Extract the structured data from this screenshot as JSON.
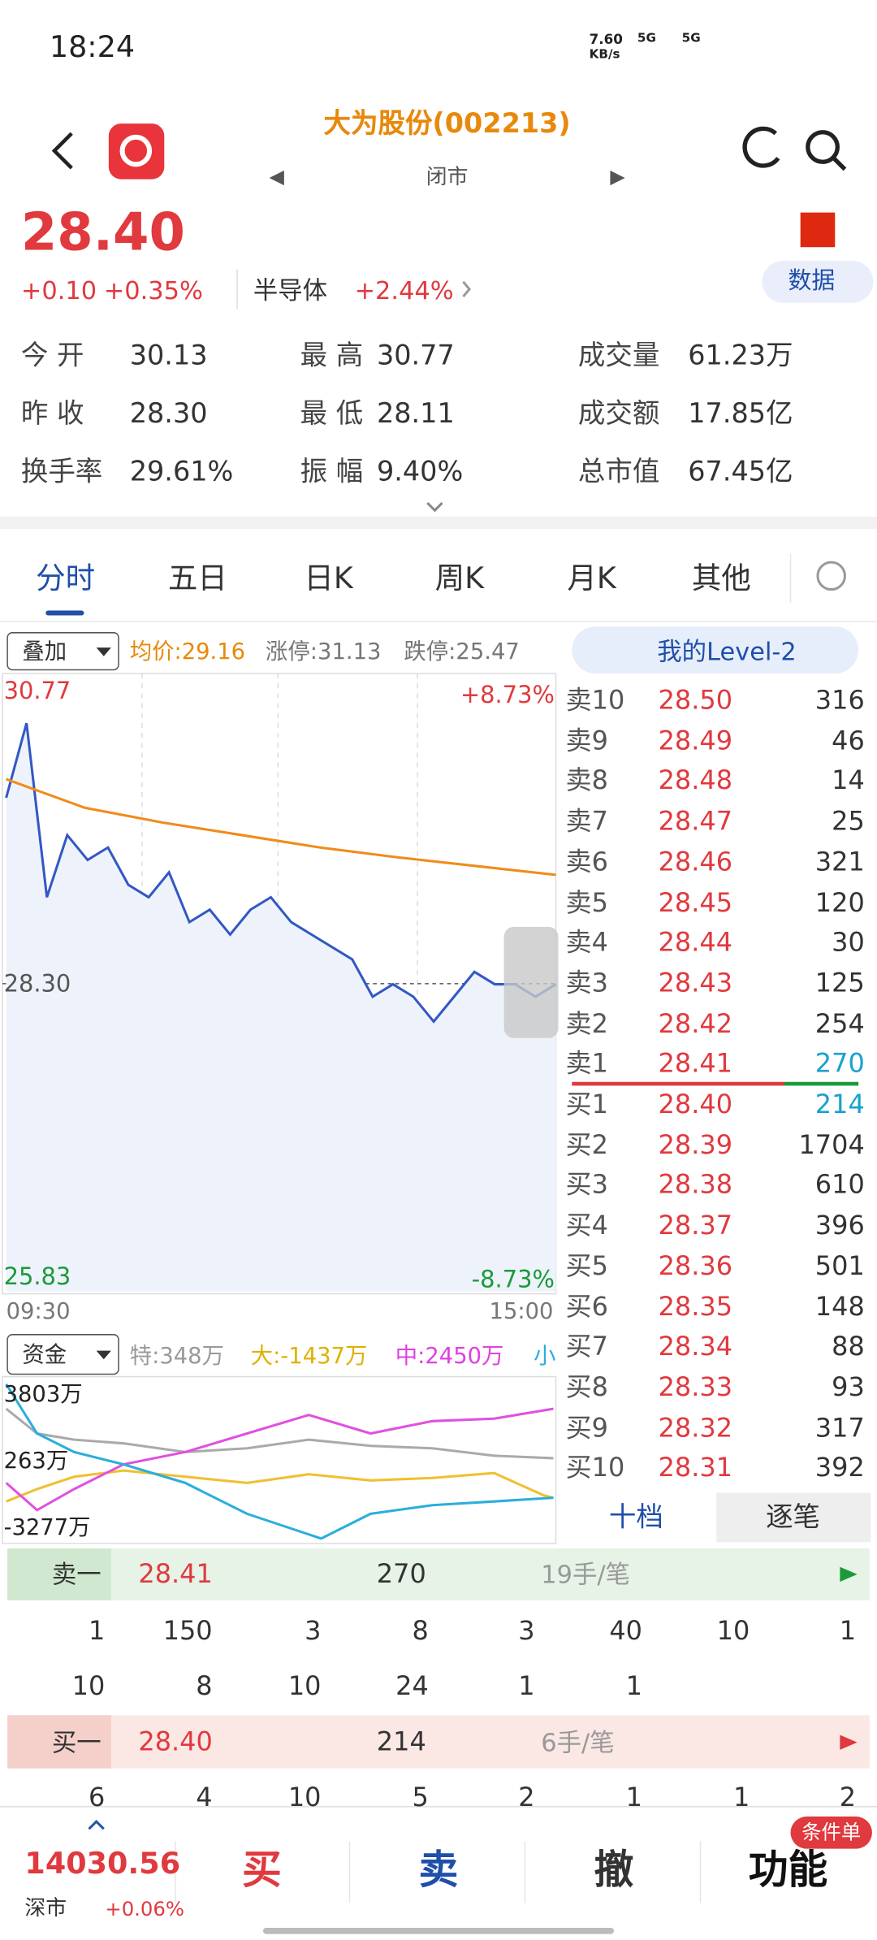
{
  "status_bar": {
    "time": "18:24",
    "speed": "7.60",
    "speed_unit": "KB/s",
    "net1": "5G",
    "net2": "5G"
  },
  "header": {
    "title": "大为股份(002213)",
    "status": "闭市"
  },
  "quote": {
    "price": "28.40",
    "change": "+0.10",
    "change_pct": "+0.35%",
    "sector": "半导体",
    "sector_pct": "+2.44%",
    "data_button": "数据"
  },
  "stats": [
    [
      [
        "今 开",
        "30.13"
      ],
      [
        "最 高",
        "30.77"
      ],
      [
        "成交量",
        "61.23万"
      ]
    ],
    [
      [
        "昨 收",
        "28.30"
      ],
      [
        "最 低",
        "28.11"
      ],
      [
        "成交额",
        "17.85亿"
      ]
    ],
    [
      [
        "换手率",
        "29.61%"
      ],
      [
        "振 幅",
        "9.40%"
      ],
      [
        "总市值",
        "67.45亿"
      ]
    ]
  ],
  "tabs": [
    "分时",
    "五日",
    "日K",
    "周K",
    "月K",
    "其他"
  ],
  "overlay": {
    "select": "叠加",
    "avg": "均价:29.16",
    "limit_up": "涨停:31.13",
    "limit_down": "跌停:25.47",
    "level2": "我的Level-2"
  },
  "intraday": {
    "ylim": [
      25.83,
      30.77
    ],
    "top_label": "30.77",
    "top_pct": "+8.73%",
    "mid_label": "28.30",
    "bottom_label": "25.83",
    "bottom_pct": "-8.73%",
    "x_start": "09:30",
    "x_end": "15:00",
    "price": [
      29.8,
      30.4,
      29.0,
      29.5,
      29.3,
      29.4,
      29.1,
      29.0,
      29.2,
      28.8,
      28.9,
      28.7,
      28.9,
      29.0,
      28.8,
      28.7,
      28.6,
      28.5,
      28.2,
      28.3,
      28.2,
      28.0,
      28.2,
      28.4,
      28.3,
      28.3,
      28.2,
      28.3
    ],
    "avg": [
      29.95,
      29.72,
      29.6,
      29.5,
      29.4,
      29.32,
      29.25,
      29.18
    ]
  },
  "funds": {
    "select": "资金",
    "special": "特:348万",
    "large": "大:-1437万",
    "medium": "中:2450万",
    "small": "小",
    "top": "3803万",
    "mid": "263万",
    "bottom": "-3277万"
  },
  "order_book": {
    "asks": [
      [
        "卖10",
        "28.50",
        "316"
      ],
      [
        "卖9",
        "28.49",
        "46"
      ],
      [
        "卖8",
        "28.48",
        "14"
      ],
      [
        "卖7",
        "28.47",
        "25"
      ],
      [
        "卖6",
        "28.46",
        "321"
      ],
      [
        "卖5",
        "28.45",
        "120"
      ],
      [
        "卖4",
        "28.44",
        "30"
      ],
      [
        "卖3",
        "28.43",
        "125"
      ],
      [
        "卖2",
        "28.42",
        "254"
      ],
      [
        "卖1",
        "28.41",
        "270"
      ]
    ],
    "bids": [
      [
        "买1",
        "28.40",
        "214"
      ],
      [
        "买2",
        "28.39",
        "1704"
      ],
      [
        "买3",
        "28.38",
        "610"
      ],
      [
        "买4",
        "28.37",
        "396"
      ],
      [
        "买5",
        "28.36",
        "501"
      ],
      [
        "买6",
        "28.35",
        "148"
      ],
      [
        "买7",
        "28.34",
        "88"
      ],
      [
        "买8",
        "28.33",
        "93"
      ],
      [
        "买9",
        "28.32",
        "317"
      ],
      [
        "买10",
        "28.31",
        "392"
      ]
    ],
    "tab_levels": "十档",
    "tab_ticks": "逐笔"
  },
  "ticks": {
    "sell": {
      "label": "卖一",
      "price": "28.41",
      "volume": "270",
      "per": "19手/笔"
    },
    "sell_rows": [
      [
        "1",
        "150",
        "3",
        "8",
        "3",
        "40",
        "10",
        "1"
      ],
      [
        "10",
        "8",
        "10",
        "24",
        "1",
        "1"
      ]
    ],
    "buy": {
      "label": "买一",
      "price": "28.40",
      "volume": "214",
      "per": "6手/笔"
    },
    "buy_rows": [
      [
        "6",
        "4",
        "10",
        "5",
        "2",
        "1",
        "1",
        "2"
      ]
    ]
  },
  "bottom": {
    "index": "14030.56",
    "market": "深市",
    "index_pct": "+0.06%",
    "buy": "买",
    "sell": "卖",
    "cancel": "撤",
    "function": "功能",
    "badge": "条件单"
  }
}
